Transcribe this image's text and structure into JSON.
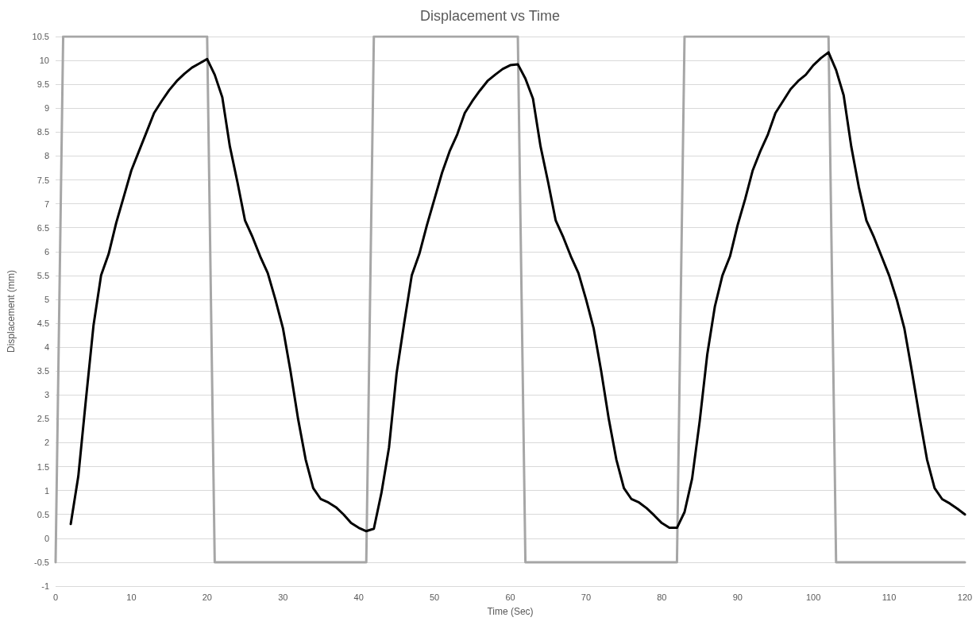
{
  "chart_data": {
    "type": "line",
    "title": "Displacement vs Time",
    "xlabel": "Time (Sec)",
    "ylabel": "Displacement (mm)",
    "xlim": [
      0,
      120
    ],
    "xticks": [
      0,
      10,
      20,
      30,
      40,
      50,
      60,
      70,
      80,
      90,
      100,
      110,
      120
    ],
    "ylim": [
      -1,
      10.5
    ],
    "yticks": [
      -1,
      -0.5,
      0,
      0.5,
      1,
      1.5,
      2,
      2.5,
      3,
      3.5,
      4,
      4.5,
      5,
      5.5,
      6,
      6.5,
      7,
      7.5,
      8,
      8.5,
      9,
      9.5,
      10,
      10.5
    ],
    "grid": "y",
    "marker": "none",
    "line_style": "solid",
    "series": [
      {
        "color": "#a6a6a6",
        "x": [
          0,
          1,
          20,
          21,
          41,
          42,
          61,
          62,
          82,
          83,
          102,
          103,
          120
        ],
        "values": [
          -0.5,
          10.5,
          10.5,
          -0.5,
          -0.5,
          10.5,
          10.5,
          -0.5,
          -0.5,
          10.5,
          10.5,
          -0.5,
          -0.5
        ]
      },
      {
        "color": "#000000",
        "x": [
          2,
          3,
          4,
          5,
          6,
          7,
          8,
          9,
          10,
          11,
          12,
          13,
          14,
          15,
          16,
          17,
          18,
          19,
          20,
          21,
          22,
          23,
          24,
          25,
          26,
          27,
          28,
          29,
          30,
          31,
          32,
          33,
          34,
          35,
          36,
          37,
          38,
          39,
          40,
          41,
          42,
          43,
          44,
          45,
          46,
          47,
          48,
          49,
          50,
          51,
          52,
          53,
          54,
          55,
          56,
          57,
          58,
          59,
          60,
          61,
          62,
          63,
          64,
          65,
          66,
          67,
          68,
          69,
          70,
          71,
          72,
          73,
          74,
          75,
          76,
          77,
          78,
          79,
          80,
          81,
          82,
          83,
          84,
          85,
          86,
          87,
          88,
          89,
          90,
          91,
          92,
          93,
          94,
          95,
          96,
          97,
          98,
          99,
          100,
          101,
          102,
          103,
          104,
          105,
          106,
          107,
          108,
          109,
          110,
          111,
          112,
          113,
          114,
          115,
          116,
          117,
          118,
          119,
          120
        ],
        "values": [
          0.3,
          1.3,
          2.9,
          4.45,
          5.5,
          5.95,
          6.6,
          7.15,
          7.7,
          8.1,
          8.5,
          8.9,
          9.15,
          9.38,
          9.57,
          9.72,
          9.85,
          9.94,
          10.03,
          9.7,
          9.23,
          8.2,
          7.45,
          6.65,
          6.3,
          5.9,
          5.55,
          5.0,
          4.4,
          3.5,
          2.5,
          1.65,
          1.05,
          0.82,
          0.75,
          0.65,
          0.5,
          0.32,
          0.22,
          0.15,
          0.2,
          0.95,
          1.9,
          3.45,
          4.5,
          5.5,
          5.95,
          6.55,
          7.1,
          7.65,
          8.1,
          8.45,
          8.9,
          9.15,
          9.37,
          9.57,
          9.7,
          9.82,
          9.9,
          9.92,
          9.62,
          9.2,
          8.2,
          7.45,
          6.65,
          6.3,
          5.9,
          5.55,
          5.0,
          4.4,
          3.5,
          2.5,
          1.65,
          1.05,
          0.82,
          0.75,
          0.63,
          0.48,
          0.32,
          0.22,
          0.22,
          0.55,
          1.25,
          2.45,
          3.85,
          4.85,
          5.5,
          5.9,
          6.55,
          7.1,
          7.7,
          8.1,
          8.45,
          8.9,
          9.15,
          9.4,
          9.57,
          9.7,
          9.9,
          10.05,
          10.17,
          9.8,
          9.27,
          8.2,
          7.35,
          6.65,
          6.3,
          5.9,
          5.5,
          5.0,
          4.4,
          3.5,
          2.55,
          1.65,
          1.05,
          0.82,
          0.73,
          0.62,
          0.5
        ]
      }
    ]
  }
}
